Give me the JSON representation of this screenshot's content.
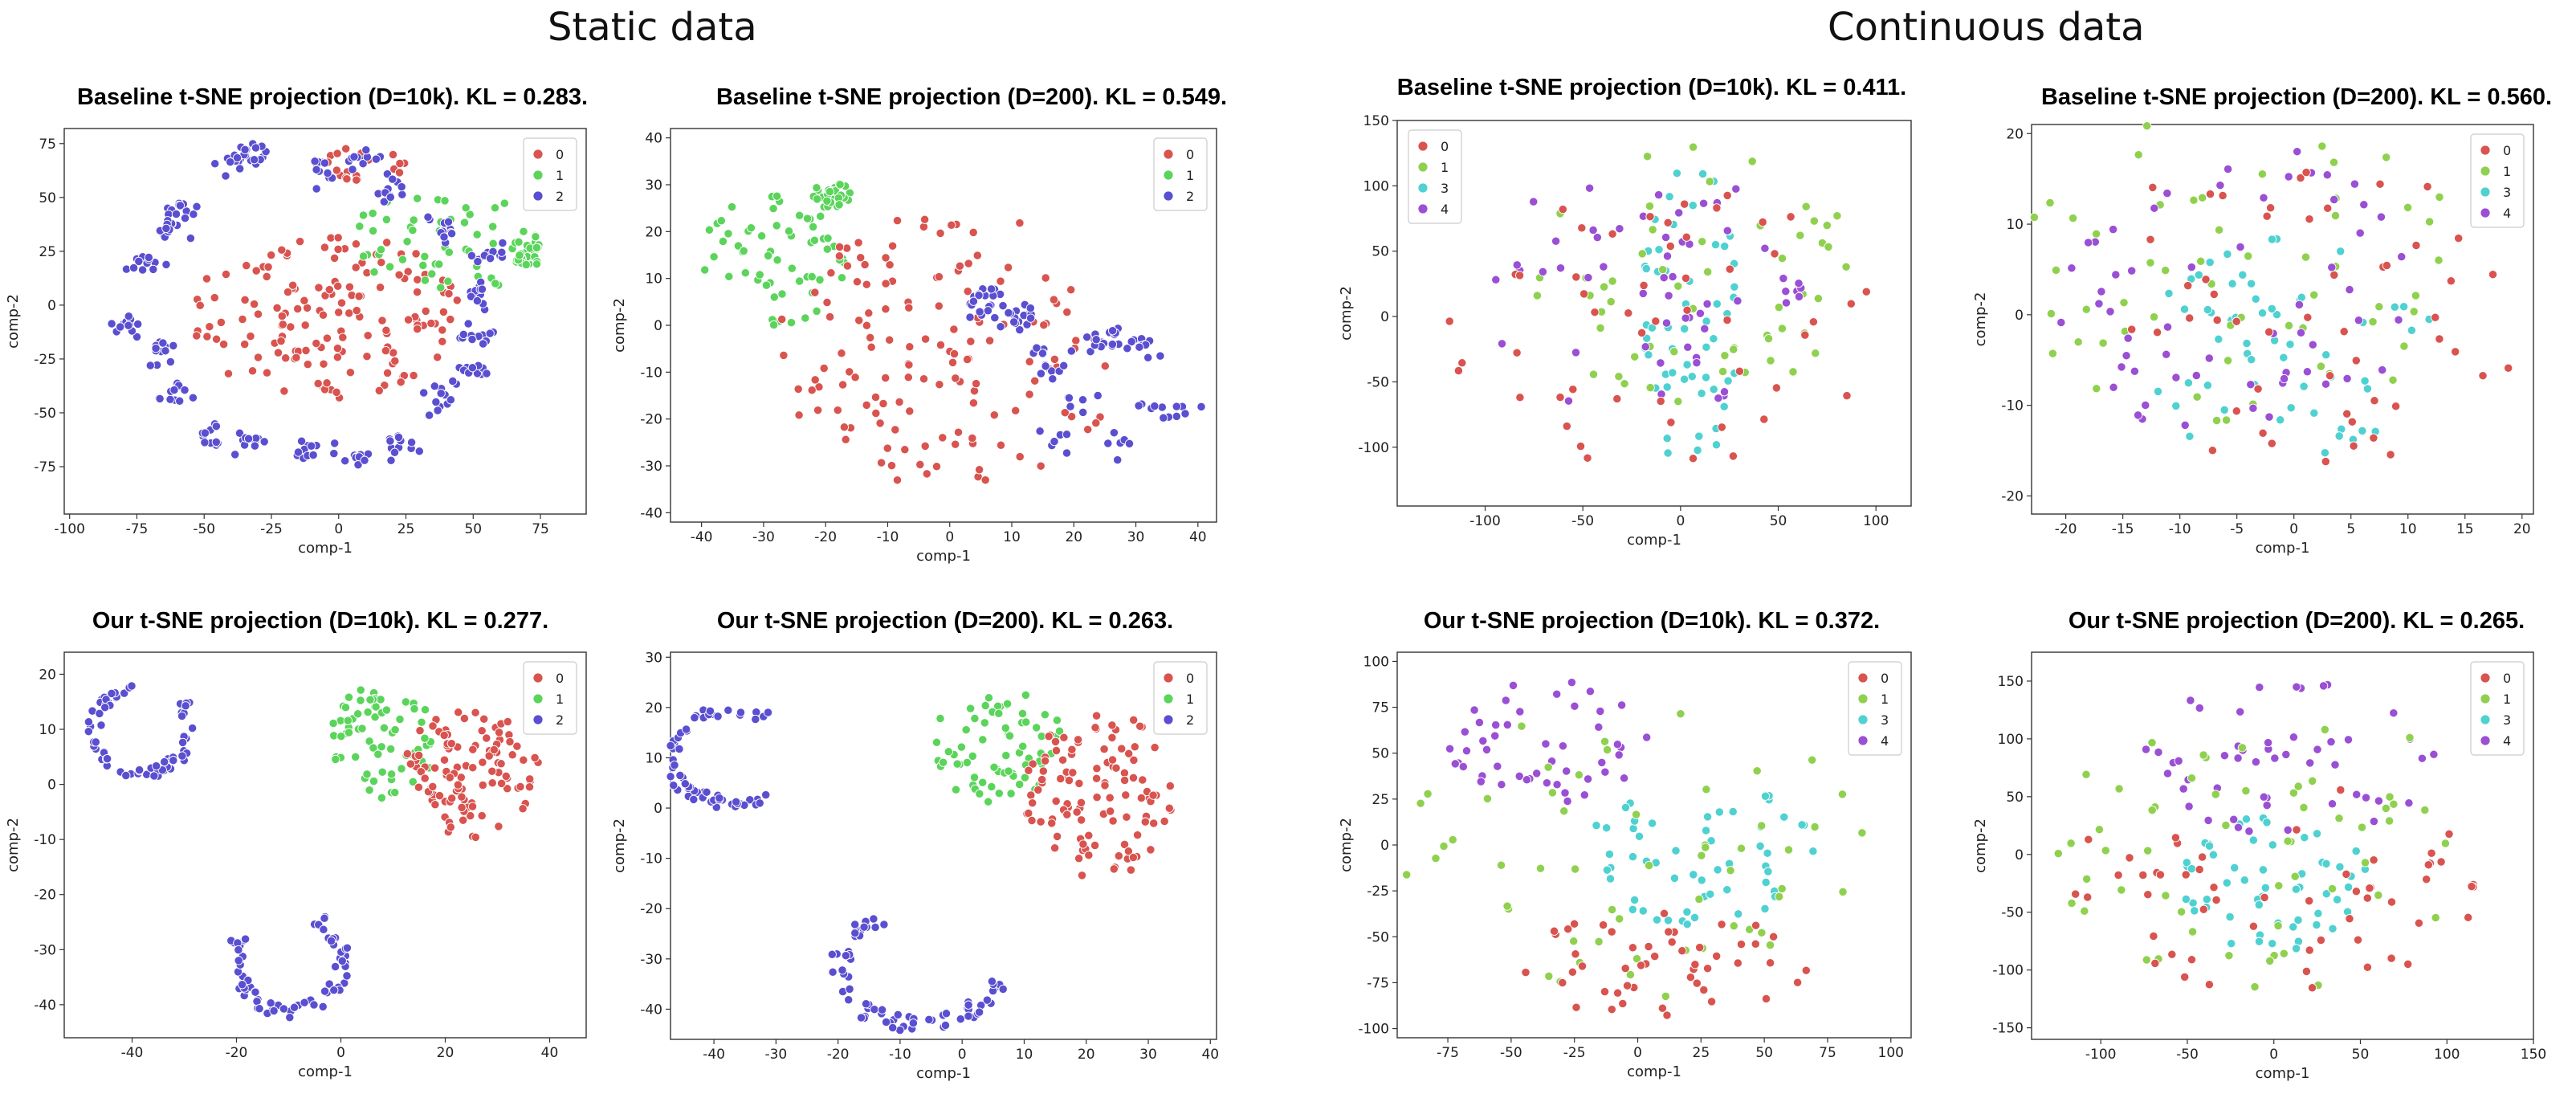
{
  "sections": {
    "static_title": "Static data",
    "continuous_title": "Continuous data"
  },
  "palette": {
    "0": "#d9534f",
    "1": "#5bd45b",
    "2": "#5a4fd0"
  },
  "palette_cont": {
    "0": "#d9534f",
    "1": "#8fd14f",
    "3": "#4fd1d1",
    "4": "#9a4fd4"
  },
  "chart_data": [
    {
      "id": "static-baseline-10k",
      "type": "scatter",
      "title": "Baseline t-SNE projection (D=10k). KL = 0.283.",
      "xlabel": "comp-1",
      "ylabel": "comp-2",
      "xlim": [
        -102,
        92
      ],
      "ylim": [
        -97,
        82
      ],
      "xticks": [
        -100,
        -75,
        -50,
        -25,
        0,
        25,
        50,
        75
      ],
      "yticks": [
        -75,
        -50,
        -25,
        0,
        25,
        50,
        75
      ],
      "legend": [
        "0",
        "1",
        "2"
      ],
      "legend_pos": "top-right",
      "clusters": [
        {
          "label": "0",
          "kind": "blob",
          "cx": -5,
          "cy": -5,
          "rx": 50,
          "ry": 40,
          "n": 150
        },
        {
          "label": "0",
          "kind": "blob",
          "cx": 10,
          "cy": 65,
          "rx": 15,
          "ry": 10,
          "n": 20
        },
        {
          "label": "1",
          "kind": "blob",
          "cx": 40,
          "cy": 30,
          "rx": 35,
          "ry": 25,
          "n": 55
        },
        {
          "label": "1",
          "kind": "blob",
          "cx": 70,
          "cy": 25,
          "rx": 6,
          "ry": 8,
          "n": 30
        },
        {
          "label": "2",
          "kind": "ring",
          "cx": -10,
          "cy": 0,
          "rx": 68,
          "ry": 72,
          "n": 22,
          "sub": 12,
          "subr": 3
        }
      ]
    },
    {
      "id": "static-baseline-200",
      "type": "scatter",
      "title": "Baseline t-SNE projection (D=200). KL = 0.549.",
      "xlabel": "comp-1",
      "ylabel": "comp-2",
      "xlim": [
        -45,
        43
      ],
      "ylim": [
        -42,
        42
      ],
      "xticks": [
        -40,
        -30,
        -20,
        -10,
        0,
        10,
        20,
        30,
        40
      ],
      "yticks": [
        -40,
        -30,
        -20,
        -10,
        0,
        10,
        20,
        30,
        40
      ],
      "legend": [
        "0",
        "1",
        "2"
      ],
      "legend_pos": "top-right",
      "clusters": [
        {
          "label": "1",
          "kind": "blob",
          "cx": -28,
          "cy": 15,
          "rx": 12,
          "ry": 15,
          "n": 60
        },
        {
          "label": "1",
          "kind": "blob",
          "cx": -19,
          "cy": 28,
          "rx": 3,
          "ry": 3,
          "n": 35
        },
        {
          "label": "0",
          "kind": "blob",
          "cx": 0,
          "cy": -5,
          "rx": 28,
          "ry": 30,
          "n": 140
        },
        {
          "label": "2",
          "kind": "blob",
          "cx": 20,
          "cy": -8,
          "rx": 18,
          "ry": 18,
          "n": 18,
          "sub": 6,
          "subr": 1.3
        }
      ]
    },
    {
      "id": "static-ours-10k",
      "type": "scatter",
      "title": "Our t-SNE projection (D=10k). KL = 0.277.",
      "xlabel": "comp-1",
      "ylabel": "comp-2",
      "xlim": [
        -53,
        47
      ],
      "ylim": [
        -46,
        24
      ],
      "xticks": [
        -40,
        -20,
        0,
        20,
        40
      ],
      "yticks": [
        -40,
        -30,
        -20,
        -10,
        0,
        10,
        20
      ],
      "legend": [
        "0",
        "1",
        "2"
      ],
      "legend_pos": "top-right",
      "clusters": [
        {
          "label": "2",
          "kind": "arc",
          "cx": -38,
          "cy": 10,
          "r": 8,
          "a0": 100,
          "a1": 400,
          "n": 70
        },
        {
          "label": "2",
          "kind": "arc",
          "cx": -10,
          "cy": -32,
          "r": 9,
          "a0": 150,
          "a1": 420,
          "n": 70
        },
        {
          "label": "1",
          "kind": "blob",
          "cx": 8,
          "cy": 8,
          "rx": 10,
          "ry": 11,
          "n": 70
        },
        {
          "label": "0",
          "kind": "blob",
          "cx": 25,
          "cy": 2,
          "rx": 13,
          "ry": 12,
          "n": 110
        }
      ]
    },
    {
      "id": "static-ours-200",
      "type": "scatter",
      "title": "Our t-SNE projection (D=200). KL = 0.263.",
      "xlabel": "comp-1",
      "ylabel": "comp-2",
      "xlim": [
        -47,
        41
      ],
      "ylim": [
        -46,
        31
      ],
      "xticks": [
        -40,
        -30,
        -20,
        -10,
        0,
        10,
        20,
        30,
        40
      ],
      "yticks": [
        -40,
        -30,
        -20,
        -10,
        0,
        10,
        20,
        30
      ],
      "legend": [
        "0",
        "1",
        "2"
      ],
      "legend_pos": "top-right",
      "clusters": [
        {
          "label": "2",
          "kind": "arc",
          "cx": -37,
          "cy": 10,
          "r": 9,
          "a0": 60,
          "a1": 310,
          "n": 70
        },
        {
          "label": "2",
          "kind": "arc",
          "cx": -7,
          "cy": -32,
          "r": 11,
          "a0": 100,
          "a1": 350,
          "n": 70
        },
        {
          "label": "1",
          "kind": "blob",
          "cx": 6,
          "cy": 12,
          "rx": 11,
          "ry": 12,
          "n": 70
        },
        {
          "label": "0",
          "kind": "blob",
          "cx": 22,
          "cy": 3,
          "rx": 12,
          "ry": 17,
          "n": 110
        }
      ]
    },
    {
      "id": "cont-baseline-10k",
      "type": "scatter",
      "title": "Baseline t-SNE projection (D=10k). KL = 0.411.",
      "xlabel": "comp-1",
      "ylabel": "comp-2",
      "xlim": [
        -145,
        118
      ],
      "ylim": [
        -145,
        150
      ],
      "xticks": [
        -100,
        -50,
        0,
        50,
        100
      ],
      "yticks": [
        -100,
        -50,
        0,
        50,
        100,
        150
      ],
      "legend": [
        "0",
        "1",
        "3",
        "4"
      ],
      "legend_pos": "top-left",
      "clusters": [
        {
          "label": "3",
          "kind": "blob",
          "cx": 5,
          "cy": 0,
          "rx": 25,
          "ry": 120,
          "n": 55
        },
        {
          "label": "1",
          "kind": "blob",
          "cx": 10,
          "cy": 30,
          "rx": 85,
          "ry": 100,
          "n": 55
        },
        {
          "label": "4",
          "kind": "blob",
          "cx": -20,
          "cy": 20,
          "rx": 85,
          "ry": 95,
          "n": 55
        },
        {
          "label": "0",
          "kind": "blob",
          "cx": -10,
          "cy": -10,
          "rx": 110,
          "ry": 110,
          "n": 50
        }
      ]
    },
    {
      "id": "cont-baseline-200",
      "type": "scatter",
      "title": "Baseline t-SNE projection (D=200). KL = 0.560.",
      "xlabel": "comp-1",
      "ylabel": "comp-2",
      "xlim": [
        -23,
        21
      ],
      "ylim": [
        -22,
        21
      ],
      "xticks": [
        -20,
        -15,
        -10,
        -5,
        0,
        5,
        10,
        15,
        20
      ],
      "yticks": [
        -20,
        -10,
        0,
        10,
        20
      ],
      "legend": [
        "0",
        "1",
        "3",
        "4"
      ],
      "legend_pos": "top-right",
      "clusters": [
        {
          "label": "3",
          "kind": "blob",
          "cx": 0,
          "cy": -5,
          "rx": 13,
          "ry": 14,
          "n": 55
        },
        {
          "label": "1",
          "kind": "blob",
          "cx": -5,
          "cy": 5,
          "rx": 20,
          "ry": 18,
          "n": 55
        },
        {
          "label": "4",
          "kind": "blob",
          "cx": -5,
          "cy": 2,
          "rx": 16,
          "ry": 17,
          "n": 60
        },
        {
          "label": "0",
          "kind": "blob",
          "cx": 0,
          "cy": 0,
          "rx": 20,
          "ry": 18,
          "n": 50
        }
      ]
    },
    {
      "id": "cont-ours-10k",
      "type": "scatter",
      "title": "Our t-SNE projection (D=10k). KL = 0.372.",
      "xlabel": "comp-1",
      "ylabel": "comp-2",
      "xlim": [
        -95,
        108
      ],
      "ylim": [
        -105,
        105
      ],
      "xticks": [
        -75,
        -50,
        -25,
        0,
        25,
        50,
        75,
        100
      ],
      "yticks": [
        -100,
        -75,
        -50,
        -25,
        0,
        25,
        50,
        75,
        100
      ],
      "legend": [
        "0",
        "1",
        "3",
        "4"
      ],
      "legend_pos": "top-right",
      "clusters": [
        {
          "label": "3",
          "kind": "blob",
          "cx": 25,
          "cy": -5,
          "rx": 45,
          "ry": 40,
          "n": 55
        },
        {
          "label": "4",
          "kind": "blob",
          "cx": -35,
          "cy": 55,
          "rx": 40,
          "ry": 35,
          "n": 50
        },
        {
          "label": "1",
          "kind": "blob",
          "cx": 0,
          "cy": -5,
          "rx": 95,
          "ry": 80,
          "n": 55
        },
        {
          "label": "0",
          "kind": "blob",
          "cx": 10,
          "cy": -65,
          "rx": 60,
          "ry": 30,
          "n": 50
        }
      ]
    },
    {
      "id": "cont-ours-200",
      "type": "scatter",
      "title": "Our t-SNE projection (D=200). KL = 0.265.",
      "xlabel": "comp-1",
      "ylabel": "comp-2",
      "xlim": [
        -140,
        150
      ],
      "ylim": [
        -160,
        175
      ],
      "xticks": [
        -100,
        -50,
        0,
        50,
        100,
        150
      ],
      "yticks": [
        -150,
        -100,
        -50,
        0,
        50,
        100,
        150
      ],
      "legend": [
        "0",
        "1",
        "3",
        "4"
      ],
      "legend_pos": "top-right",
      "clusters": [
        {
          "label": "3",
          "kind": "blob",
          "cx": 0,
          "cy": -25,
          "rx": 55,
          "ry": 60,
          "n": 55
        },
        {
          "label": "4",
          "kind": "blob",
          "cx": 10,
          "cy": 80,
          "rx": 90,
          "ry": 70,
          "n": 50
        },
        {
          "label": "1",
          "kind": "blob",
          "cx": -10,
          "cy": 10,
          "rx": 125,
          "ry": 130,
          "n": 55
        },
        {
          "label": "0",
          "kind": "blob",
          "cx": 0,
          "cy": -30,
          "rx": 120,
          "ry": 100,
          "n": 55
        }
      ]
    }
  ]
}
